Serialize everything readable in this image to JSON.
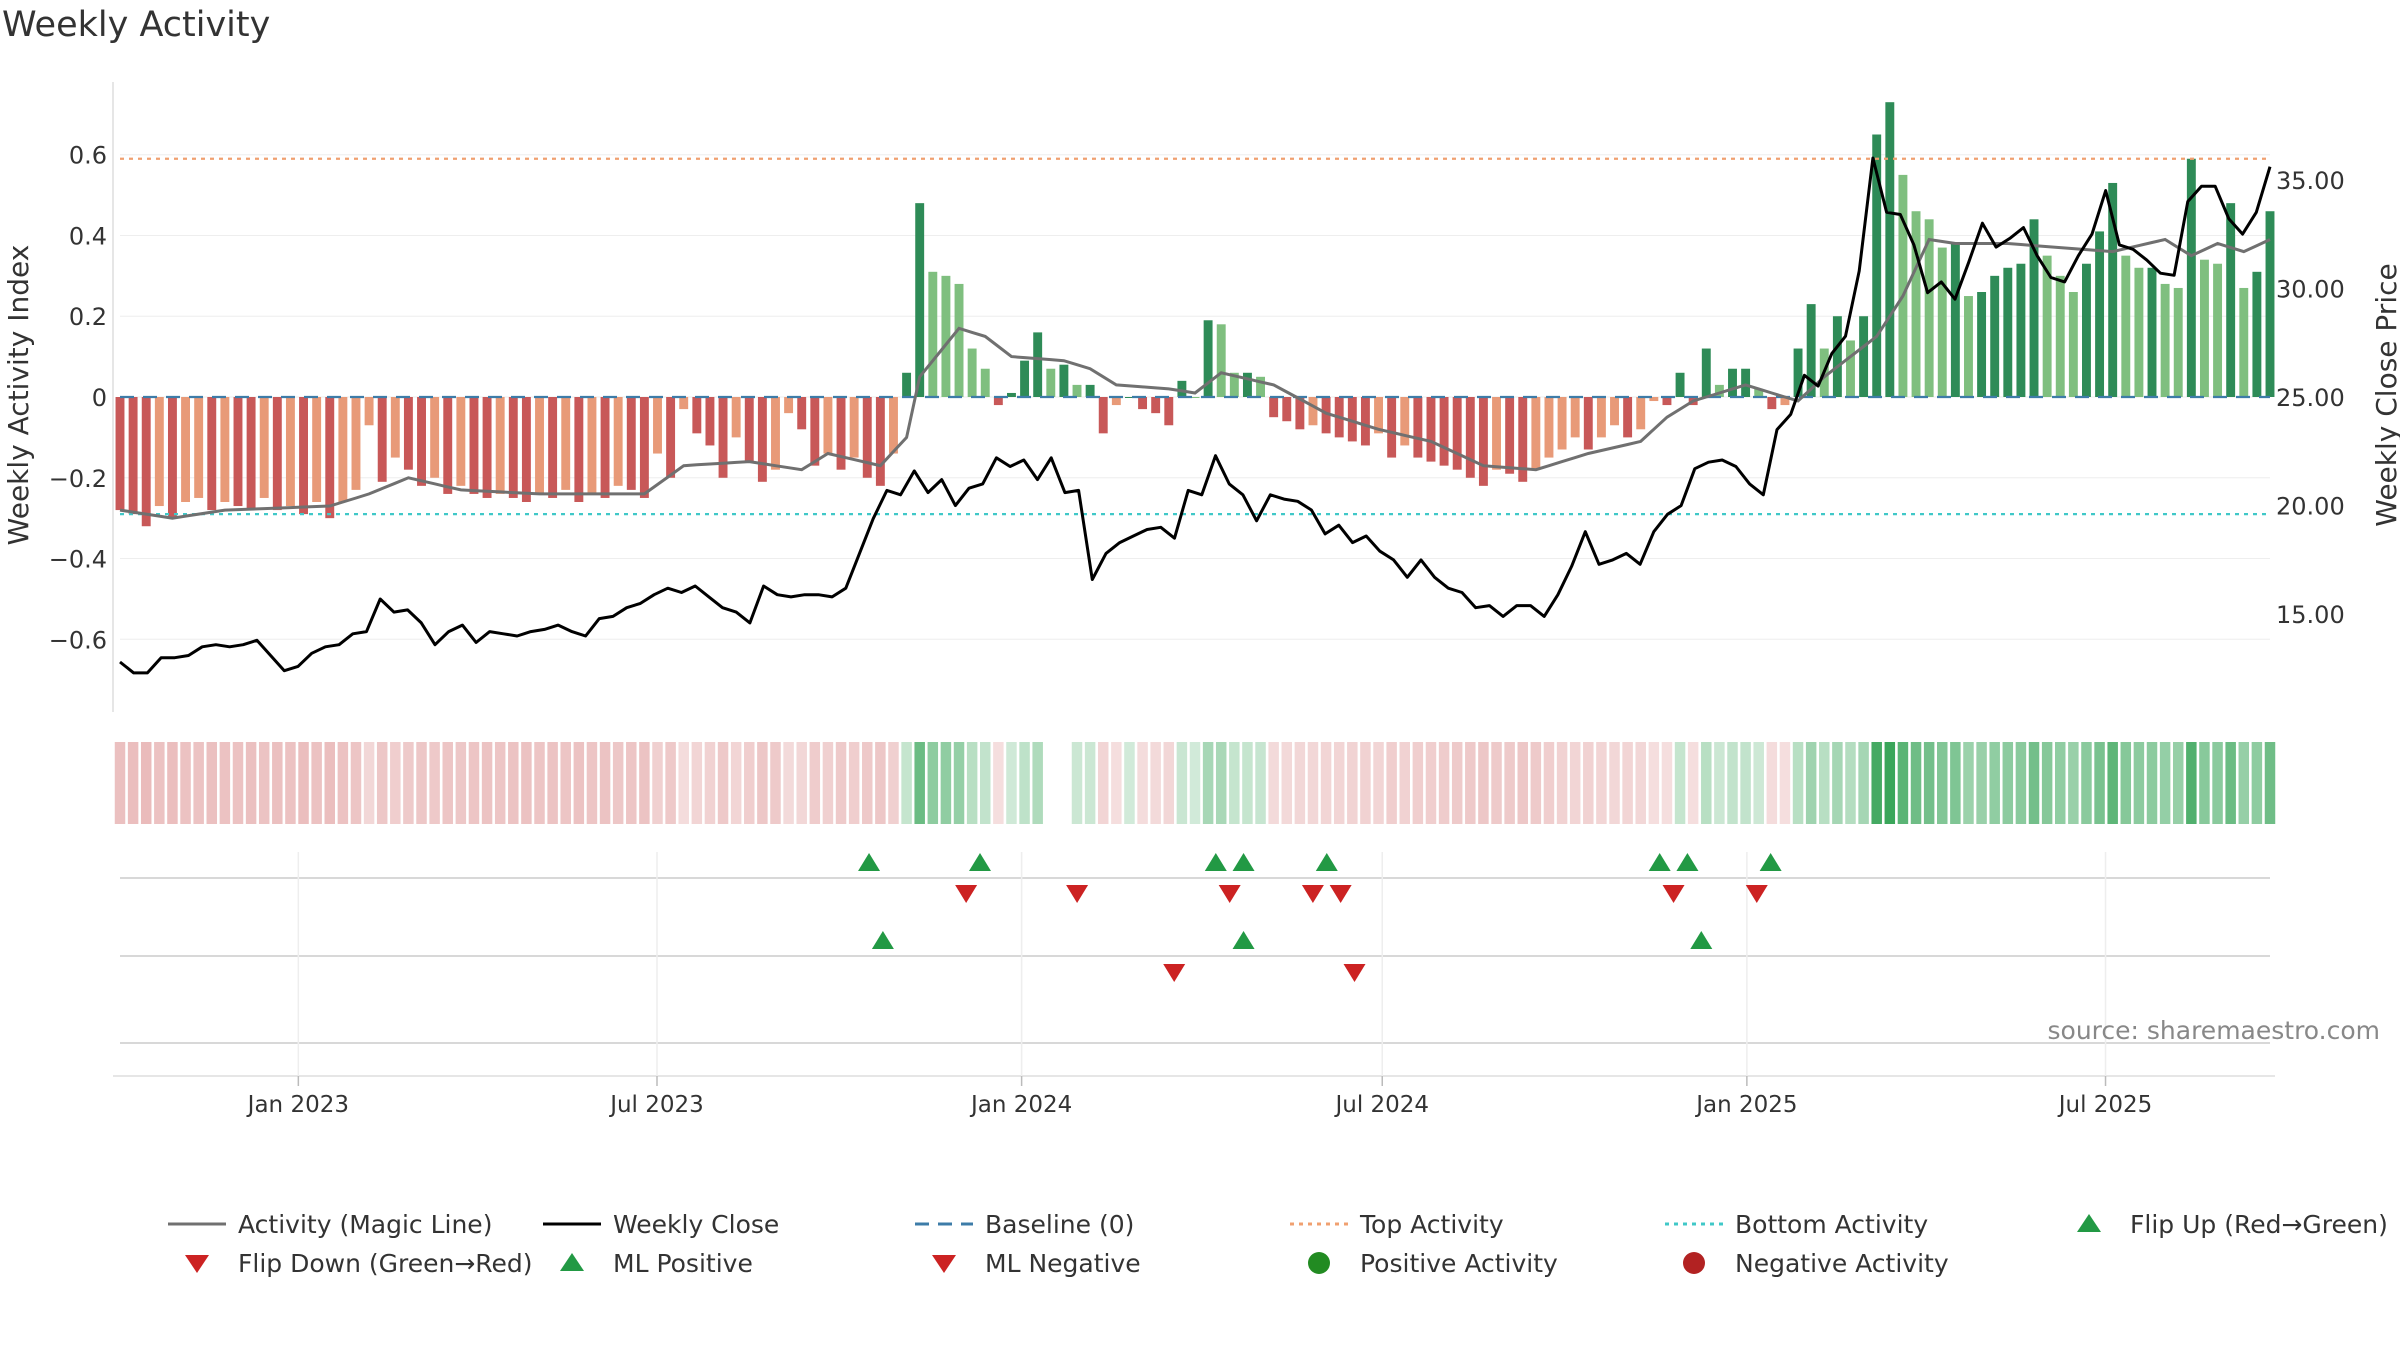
{
  "chart_data": {
    "type": "bar",
    "title": "Weekly Activity",
    "ylabel": "Weekly Activity Index",
    "y2label": "Weekly Close Price",
    "source": "source: sharemaestro.com",
    "ylim": [
      -0.78,
      0.78
    ],
    "y2lim": [
      10.5,
      39.5
    ],
    "yticks": [
      0.6,
      0.4,
      0.2,
      0,
      -0.2,
      -0.4,
      -0.6
    ],
    "ytick_labels": [
      "0.6",
      "0.4",
      "0.2",
      "0",
      "−0.2",
      "−0.4",
      "−0.6"
    ],
    "y2ticks": [
      35,
      30,
      25,
      20,
      15
    ],
    "y2tick_labels": [
      "35.00",
      "30.00",
      "25.00",
      "20.00",
      "15.00"
    ],
    "top_activity": 0.59,
    "bottom_activity": -0.29,
    "x_start": "2022-10-03",
    "x_end": "2025-09-22",
    "xticks": [
      {
        "date": "2023-01-01",
        "label": "Jan 2023"
      },
      {
        "date": "2023-07-01",
        "label": "Jul 2023"
      },
      {
        "date": "2024-01-01",
        "label": "Jan 2024"
      },
      {
        "date": "2024-07-01",
        "label": "Jul 2024"
      },
      {
        "date": "2025-01-01",
        "label": "Jan 2025"
      },
      {
        "date": "2025-07-01",
        "label": "Jul 2025"
      }
    ],
    "activity_anchors": [
      [
        0,
        -0.28
      ],
      [
        1,
        -0.29
      ],
      [
        2,
        -0.32
      ],
      [
        3,
        -0.27
      ],
      [
        4,
        -0.3
      ],
      [
        5,
        -0.26
      ],
      [
        6,
        -0.25
      ],
      [
        7,
        -0.28
      ],
      [
        8,
        -0.26
      ],
      [
        9,
        -0.27
      ],
      [
        10,
        -0.28
      ],
      [
        11,
        -0.25
      ],
      [
        12,
        -0.28
      ],
      [
        13,
        -0.27
      ],
      [
        14,
        -0.29
      ],
      [
        15,
        -0.26
      ],
      [
        16,
        -0.3
      ],
      [
        17,
        -0.26
      ],
      [
        18,
        -0.23
      ],
      [
        19,
        -0.07
      ],
      [
        20,
        -0.21
      ],
      [
        21,
        -0.15
      ],
      [
        22,
        -0.18
      ],
      [
        23,
        -0.22
      ],
      [
        24,
        -0.2
      ],
      [
        25,
        -0.24
      ],
      [
        26,
        -0.22
      ],
      [
        27,
        -0.24
      ],
      [
        28,
        -0.25
      ],
      [
        29,
        -0.24
      ],
      [
        30,
        -0.25
      ],
      [
        31,
        -0.26
      ],
      [
        32,
        -0.24
      ],
      [
        33,
        -0.25
      ],
      [
        34,
        -0.23
      ],
      [
        35,
        -0.26
      ],
      [
        36,
        -0.24
      ],
      [
        37,
        -0.25
      ],
      [
        38,
        -0.22
      ],
      [
        39,
        -0.23
      ],
      [
        40,
        -0.25
      ],
      [
        41,
        -0.14
      ],
      [
        42,
        -0.2
      ],
      [
        43,
        -0.03
      ],
      [
        44,
        -0.09
      ],
      [
        45,
        -0.12
      ],
      [
        46,
        -0.2
      ],
      [
        47,
        -0.1
      ],
      [
        48,
        -0.16
      ],
      [
        49,
        -0.21
      ],
      [
        50,
        -0.18
      ],
      [
        51,
        -0.04
      ],
      [
        52,
        -0.08
      ],
      [
        53,
        -0.17
      ],
      [
        54,
        -0.14
      ],
      [
        55,
        -0.18
      ],
      [
        56,
        -0.15
      ],
      [
        57,
        -0.2
      ],
      [
        58,
        -0.22
      ],
      [
        59,
        -0.14
      ],
      [
        60,
        0.06
      ],
      [
        61,
        0.48
      ],
      [
        62,
        0.31
      ],
      [
        63,
        0.3
      ],
      [
        64,
        0.28
      ],
      [
        65,
        0.12
      ],
      [
        66,
        0.07
      ],
      [
        67,
        -0.02
      ],
      [
        68,
        0.01
      ],
      [
        69,
        0.09
      ],
      [
        70,
        0.16
      ],
      [
        71,
        0.07
      ],
      [
        72,
        0.08
      ],
      [
        73,
        0.03
      ],
      [
        74,
        0.03
      ],
      [
        75,
        -0.09
      ],
      [
        76,
        -0.02
      ],
      [
        77,
        0
      ],
      [
        78,
        -0.03
      ],
      [
        79,
        -0.04
      ],
      [
        80,
        -0.07
      ],
      [
        81,
        0.04
      ],
      [
        82,
        0
      ],
      [
        83,
        0.19
      ],
      [
        84,
        0.18
      ],
      [
        85,
        0.06
      ],
      [
        86,
        0.06
      ],
      [
        87,
        0.05
      ],
      [
        88,
        -0.05
      ],
      [
        89,
        -0.06
      ],
      [
        90,
        -0.08
      ],
      [
        91,
        -0.07
      ],
      [
        92,
        -0.09
      ],
      [
        93,
        -0.1
      ],
      [
        94,
        -0.11
      ],
      [
        95,
        -0.12
      ],
      [
        96,
        -0.09
      ],
      [
        97,
        -0.15
      ],
      [
        98,
        -0.12
      ],
      [
        99,
        -0.15
      ],
      [
        100,
        -0.16
      ],
      [
        101,
        -0.17
      ],
      [
        102,
        -0.18
      ],
      [
        103,
        -0.2
      ],
      [
        104,
        -0.22
      ],
      [
        105,
        -0.18
      ],
      [
        106,
        -0.19
      ],
      [
        107,
        -0.21
      ],
      [
        108,
        -0.18
      ],
      [
        109,
        -0.15
      ],
      [
        110,
        -0.13
      ],
      [
        111,
        -0.1
      ],
      [
        112,
        -0.13
      ],
      [
        113,
        -0.1
      ],
      [
        114,
        -0.07
      ],
      [
        115,
        -0.1
      ],
      [
        116,
        -0.08
      ],
      [
        117,
        -0.01
      ],
      [
        118,
        -0.02
      ],
      [
        119,
        0.06
      ],
      [
        120,
        -0.02
      ],
      [
        121,
        0.12
      ],
      [
        122,
        0.03
      ],
      [
        123,
        0.07
      ],
      [
        124,
        0.07
      ],
      [
        125,
        0.02
      ],
      [
        126,
        -0.03
      ],
      [
        127,
        -0.02
      ],
      [
        128,
        0.12
      ],
      [
        129,
        0.23
      ],
      [
        130,
        0.12
      ],
      [
        131,
        0.2
      ],
      [
        132,
        0.14
      ],
      [
        133,
        0.2
      ],
      [
        134,
        0.65
      ],
      [
        135,
        0.73
      ],
      [
        136,
        0.55
      ],
      [
        137,
        0.46
      ],
      [
        138,
        0.44
      ],
      [
        139,
        0.37
      ],
      [
        140,
        0.38
      ],
      [
        141,
        0.25
      ],
      [
        142,
        0.26
      ],
      [
        143,
        0.3
      ],
      [
        144,
        0.32
      ],
      [
        145,
        0.33
      ],
      [
        146,
        0.44
      ],
      [
        147,
        0.35
      ],
      [
        148,
        0.3
      ],
      [
        149,
        0.26
      ],
      [
        150,
        0.33
      ],
      [
        151,
        0.41
      ],
      [
        152,
        0.53
      ],
      [
        153,
        0.35
      ],
      [
        154,
        0.32
      ],
      [
        155,
        0.32
      ],
      [
        156,
        0.28
      ],
      [
        157,
        0.27
      ],
      [
        158,
        0.59
      ],
      [
        159,
        0.34
      ],
      [
        160,
        0.33
      ],
      [
        161,
        0.48
      ],
      [
        162,
        0.27
      ],
      [
        163,
        0.31
      ],
      [
        164,
        0.46
      ]
    ],
    "magic_line_anchors": [
      [
        0,
        -0.28
      ],
      [
        4,
        -0.3
      ],
      [
        8,
        -0.28
      ],
      [
        16,
        -0.27
      ],
      [
        19,
        -0.24
      ],
      [
        22,
        -0.2
      ],
      [
        26,
        -0.23
      ],
      [
        32,
        -0.24
      ],
      [
        40,
        -0.24
      ],
      [
        43,
        -0.17
      ],
      [
        48,
        -0.16
      ],
      [
        52,
        -0.18
      ],
      [
        54,
        -0.14
      ],
      [
        58,
        -0.17
      ],
      [
        60,
        -0.1
      ],
      [
        61,
        0.05
      ],
      [
        64,
        0.17
      ],
      [
        66,
        0.15
      ],
      [
        68,
        0.1
      ],
      [
        72,
        0.09
      ],
      [
        74,
        0.07
      ],
      [
        76,
        0.03
      ],
      [
        80,
        0.02
      ],
      [
        82,
        0.01
      ],
      [
        84,
        0.06
      ],
      [
        88,
        0.03
      ],
      [
        92,
        -0.04
      ],
      [
        96,
        -0.08
      ],
      [
        100,
        -0.11
      ],
      [
        104,
        -0.17
      ],
      [
        108,
        -0.18
      ],
      [
        112,
        -0.14
      ],
      [
        116,
        -0.11
      ],
      [
        118,
        -0.05
      ],
      [
        120,
        -0.01
      ],
      [
        124,
        0.03
      ],
      [
        128,
        -0.01
      ],
      [
        130,
        0.05
      ],
      [
        134,
        0.15
      ],
      [
        136,
        0.25
      ],
      [
        138,
        0.39
      ],
      [
        140,
        0.38
      ],
      [
        144,
        0.38
      ],
      [
        148,
        0.37
      ],
      [
        152,
        0.36
      ],
      [
        156,
        0.39
      ],
      [
        158,
        0.35
      ],
      [
        160,
        0.38
      ],
      [
        162,
        0.36
      ],
      [
        164,
        0.39
      ]
    ],
    "close_anchors": [
      [
        0,
        12.8
      ],
      [
        1,
        12.3
      ],
      [
        2,
        12.3
      ],
      [
        3,
        13.0
      ],
      [
        4,
        13.0
      ],
      [
        5,
        13.1
      ],
      [
        6,
        13.5
      ],
      [
        7,
        13.6
      ],
      [
        8,
        13.5
      ],
      [
        9,
        13.6
      ],
      [
        10,
        13.8
      ],
      [
        12,
        12.4
      ],
      [
        13,
        12.6
      ],
      [
        14,
        13.2
      ],
      [
        15,
        13.5
      ],
      [
        16,
        13.6
      ],
      [
        17,
        14.1
      ],
      [
        18,
        14.2
      ],
      [
        19,
        15.7
      ],
      [
        20,
        15.1
      ],
      [
        21,
        15.2
      ],
      [
        22,
        14.6
      ],
      [
        23,
        13.6
      ],
      [
        24,
        14.2
      ],
      [
        25,
        14.5
      ],
      [
        26,
        13.7
      ],
      [
        27,
        14.2
      ],
      [
        28,
        14.1
      ],
      [
        29,
        14.0
      ],
      [
        30,
        14.2
      ],
      [
        31,
        14.3
      ],
      [
        32,
        14.5
      ],
      [
        33,
        14.2
      ],
      [
        34,
        14.0
      ],
      [
        35,
        14.8
      ],
      [
        36,
        14.9
      ],
      [
        37,
        15.3
      ],
      [
        38,
        15.5
      ],
      [
        39,
        15.9
      ],
      [
        40,
        16.2
      ],
      [
        41,
        16.0
      ],
      [
        42,
        16.3
      ],
      [
        43,
        15.8
      ],
      [
        44,
        15.3
      ],
      [
        45,
        15.1
      ],
      [
        46,
        14.6
      ],
      [
        47,
        16.3
      ],
      [
        48,
        15.9
      ],
      [
        49,
        15.8
      ],
      [
        50,
        15.9
      ],
      [
        51,
        15.9
      ],
      [
        52,
        15.8
      ],
      [
        53,
        16.2
      ],
      [
        54,
        17.8
      ],
      [
        55,
        19.4
      ],
      [
        56,
        20.7
      ],
      [
        57,
        20.5
      ],
      [
        58,
        21.6
      ],
      [
        59,
        20.6
      ],
      [
        60,
        21.2
      ],
      [
        61,
        20.0
      ],
      [
        62,
        20.8
      ],
      [
        63,
        21.0
      ],
      [
        64,
        22.2
      ],
      [
        65,
        21.8
      ],
      [
        66,
        22.1
      ],
      [
        67,
        21.2
      ],
      [
        68,
        22.2
      ],
      [
        69,
        20.6
      ],
      [
        70,
        20.7
      ],
      [
        71,
        16.6
      ],
      [
        72,
        17.8
      ],
      [
        73,
        18.3
      ],
      [
        74,
        18.6
      ],
      [
        75,
        18.9
      ],
      [
        76,
        19.0
      ],
      [
        77,
        18.5
      ],
      [
        78,
        20.7
      ],
      [
        79,
        20.5
      ],
      [
        80,
        22.3
      ],
      [
        81,
        21.0
      ],
      [
        82,
        20.5
      ],
      [
        83,
        19.3
      ],
      [
        84,
        20.5
      ],
      [
        85,
        20.3
      ],
      [
        86,
        20.2
      ],
      [
        87,
        19.8
      ],
      [
        88,
        18.7
      ],
      [
        89,
        19.1
      ],
      [
        90,
        18.3
      ],
      [
        91,
        18.6
      ],
      [
        92,
        17.9
      ],
      [
        93,
        17.5
      ],
      [
        94,
        16.7
      ],
      [
        95,
        17.5
      ],
      [
        96,
        16.7
      ],
      [
        97,
        16.2
      ],
      [
        98,
        16.0
      ],
      [
        99,
        15.3
      ],
      [
        100,
        15.4
      ],
      [
        101,
        14.9
      ],
      [
        102,
        15.4
      ],
      [
        103,
        15.4
      ],
      [
        104,
        14.9
      ],
      [
        105,
        15.9
      ],
      [
        106,
        17.2
      ],
      [
        107,
        18.8
      ],
      [
        108,
        17.3
      ],
      [
        109,
        17.5
      ],
      [
        110,
        17.8
      ],
      [
        111,
        17.3
      ],
      [
        112,
        18.8
      ],
      [
        113,
        19.6
      ],
      [
        114,
        20.0
      ],
      [
        115,
        21.7
      ],
      [
        116,
        22.0
      ],
      [
        117,
        22.1
      ],
      [
        118,
        21.8
      ],
      [
        119,
        21.0
      ],
      [
        120,
        20.5
      ],
      [
        121,
        23.5
      ],
      [
        122,
        24.2
      ],
      [
        123,
        26.0
      ],
      [
        124,
        25.5
      ],
      [
        125,
        27.0
      ],
      [
        126,
        27.8
      ],
      [
        127,
        30.8
      ],
      [
        128,
        36.0
      ],
      [
        129,
        33.5
      ],
      [
        130,
        33.4
      ],
      [
        131,
        32.0
      ],
      [
        132,
        29.8
      ],
      [
        133,
        30.3
      ],
      [
        134,
        29.5
      ],
      [
        135,
        31.2
      ],
      [
        136,
        33.0
      ],
      [
        137,
        31.9
      ],
      [
        138,
        32.3
      ],
      [
        139,
        32.8
      ],
      [
        140,
        31.5
      ],
      [
        141,
        30.5
      ],
      [
        142,
        30.3
      ],
      [
        143,
        31.5
      ],
      [
        144,
        32.5
      ],
      [
        145,
        34.5
      ],
      [
        146,
        32.0
      ],
      [
        147,
        31.8
      ],
      [
        148,
        31.3
      ],
      [
        149,
        30.7
      ],
      [
        150,
        30.6
      ],
      [
        151,
        34.0
      ],
      [
        152,
        34.7
      ],
      [
        153,
        34.7
      ],
      [
        154,
        33.2
      ],
      [
        155,
        32.5
      ],
      [
        156,
        33.5
      ],
      [
        157,
        35.6
      ]
    ],
    "heat_strip_gaps": [
      71,
      72
    ],
    "flip_up_markers": [
      "2023-10-16",
      "2023-12-11",
      "2024-04-08",
      "2024-04-22",
      "2024-06-03",
      "2024-11-18",
      "2024-12-02",
      "2025-01-13"
    ],
    "flip_down_markers": [
      "2023-12-04",
      "2024-01-29",
      "2024-04-15",
      "2024-05-27",
      "2024-06-10",
      "2024-11-25",
      "2025-01-06"
    ],
    "ml_positive_markers": [
      "2023-10-23",
      "2024-04-22",
      "2024-12-09"
    ],
    "ml_negative_markers": [
      "2024-03-18",
      "2024-06-17"
    ],
    "legend": [
      {
        "label": "Activity (Magic Line)",
        "kind": "line",
        "color": "#707070"
      },
      {
        "label": "Weekly Close",
        "kind": "line",
        "color": "#000000"
      },
      {
        "label": "Baseline (0)",
        "kind": "dash",
        "color": "#3d7ca8"
      },
      {
        "label": "Top Activity",
        "kind": "dot",
        "color": "#f0a070"
      },
      {
        "label": "Bottom Activity",
        "kind": "dot",
        "color": "#40c8c8"
      },
      {
        "label": "Flip Up (Red→Green)",
        "kind": "tri-up",
        "color": "#229944"
      },
      {
        "label": "Flip Down (Green→Red)",
        "kind": "tri-down",
        "color": "#cc2222"
      },
      {
        "label": "ML Positive",
        "kind": "tri-up",
        "color": "#229944"
      },
      {
        "label": "ML Negative",
        "kind": "tri-down",
        "color": "#cc2222"
      },
      {
        "label": "Positive Activity",
        "kind": "circle",
        "color": "#228b22"
      },
      {
        "label": "Negative Activity",
        "kind": "circle",
        "color": "#b22222"
      }
    ],
    "colors": {
      "pos_strong": "#2e8b57",
      "pos_weak": "#7fbf7f",
      "neg_strong": "#c85858",
      "neg_weak": "#e89a78",
      "magic_line": "#707070",
      "close": "#000000",
      "baseline": "#3d7ca8",
      "top": "#f0a070",
      "bottom": "#40c8c8",
      "up": "#229944",
      "down": "#cc2222"
    }
  }
}
